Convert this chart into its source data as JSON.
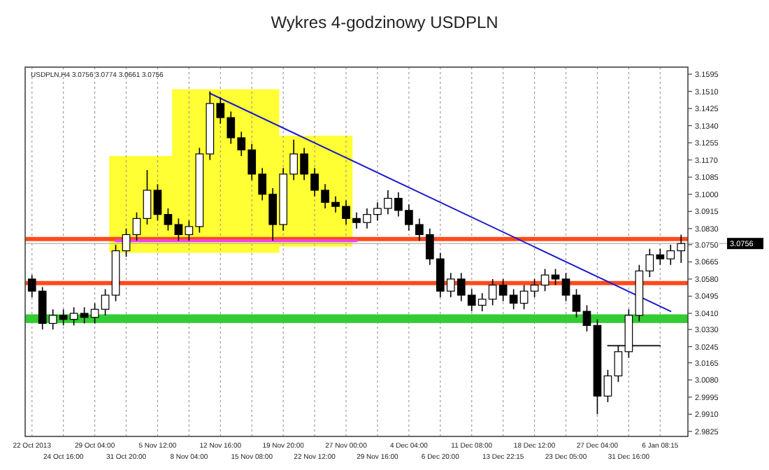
{
  "chart_data": {
    "type": "candlestick",
    "title": "Wykres 4-godzinowy USDPLN",
    "annotations": [
      "USDPLN,H4 3.0756 3.0774 3.0661 3.0756"
    ],
    "categories": [
      "22 Oct 2013",
      null,
      null,
      "24 Oct 16:00",
      null,
      null,
      "29 Oct 04:00",
      null,
      null,
      "31 Oct 20:00",
      null,
      null,
      "5 Nov 12:00",
      null,
      null,
      "8 Nov 04:00",
      null,
      null,
      "12 Nov 16:00",
      null,
      null,
      "15 Nov 08:00",
      null,
      null,
      "19 Nov 20:00",
      null,
      null,
      "22 Nov 12:00",
      null,
      null,
      "27 Nov 00:00",
      null,
      null,
      "29 Nov 16:00",
      null,
      null,
      "4 Dec 04:00",
      null,
      null,
      "6 Dec 20:00",
      null,
      null,
      "11 Dec 08:00",
      null,
      null,
      "13 Dec 22:15",
      null,
      null,
      "18 Dec 12:00",
      null,
      null,
      "23 Dec 05:00",
      null,
      null,
      "27 Dec 04:00",
      null,
      null,
      "31 Dec 16:00",
      null,
      null,
      "6 Jan 08:15",
      null,
      null
    ],
    "ohlc": [
      [
        3.058,
        3.06,
        3.049,
        3.052
      ],
      [
        3.052,
        3.054,
        3.033,
        3.036
      ],
      [
        3.036,
        3.043,
        3.033,
        3.04
      ],
      [
        3.04,
        3.043,
        3.035,
        3.038
      ],
      [
        3.038,
        3.044,
        3.035,
        3.041
      ],
      [
        3.041,
        3.044,
        3.036,
        3.039
      ],
      [
        3.039,
        3.046,
        3.036,
        3.043
      ],
      [
        3.043,
        3.053,
        3.04,
        3.05
      ],
      [
        3.05,
        3.075,
        3.047,
        3.072
      ],
      [
        3.072,
        3.083,
        3.069,
        3.08
      ],
      [
        3.08,
        3.091,
        3.077,
        3.088
      ],
      [
        3.088,
        3.112,
        3.085,
        3.102
      ],
      [
        3.102,
        3.105,
        3.087,
        3.09
      ],
      [
        3.09,
        3.093,
        3.082,
        3.085
      ],
      [
        3.085,
        3.088,
        3.077,
        3.08
      ],
      [
        3.08,
        3.087,
        3.077,
        3.084
      ],
      [
        3.084,
        3.123,
        3.081,
        3.12
      ],
      [
        3.12,
        3.151,
        3.117,
        3.145
      ],
      [
        3.145,
        3.148,
        3.135,
        3.138
      ],
      [
        3.138,
        3.141,
        3.125,
        3.128
      ],
      [
        3.128,
        3.131,
        3.119,
        3.122
      ],
      [
        3.122,
        3.125,
        3.107,
        3.11
      ],
      [
        3.11,
        3.113,
        3.097,
        3.1
      ],
      [
        3.1,
        3.103,
        3.077,
        3.085
      ],
      [
        3.085,
        3.113,
        3.082,
        3.11
      ],
      [
        3.11,
        3.127,
        3.107,
        3.12
      ],
      [
        3.12,
        3.123,
        3.107,
        3.11
      ],
      [
        3.11,
        3.113,
        3.099,
        3.102
      ],
      [
        3.102,
        3.105,
        3.093,
        3.096
      ],
      [
        3.096,
        3.099,
        3.091,
        3.094
      ],
      [
        3.094,
        3.097,
        3.085,
        3.088
      ],
      [
        3.088,
        3.091,
        3.083,
        3.086
      ],
      [
        3.086,
        3.093,
        3.083,
        3.09
      ],
      [
        3.09,
        3.096,
        3.087,
        3.093
      ],
      [
        3.093,
        3.102,
        3.09,
        3.098
      ],
      [
        3.098,
        3.101,
        3.089,
        3.092
      ],
      [
        3.092,
        3.095,
        3.082,
        3.085
      ],
      [
        3.085,
        3.088,
        3.077,
        3.08
      ],
      [
        3.08,
        3.083,
        3.065,
        3.068
      ],
      [
        3.068,
        3.071,
        3.049,
        3.052
      ],
      [
        3.052,
        3.061,
        3.049,
        3.058
      ],
      [
        3.058,
        3.061,
        3.047,
        3.05
      ],
      [
        3.05,
        3.053,
        3.042,
        3.045
      ],
      [
        3.045,
        3.051,
        3.042,
        3.048
      ],
      [
        3.048,
        3.058,
        3.045,
        3.055
      ],
      [
        3.055,
        3.058,
        3.047,
        3.05
      ],
      [
        3.05,
        3.053,
        3.043,
        3.046
      ],
      [
        3.046,
        3.055,
        3.043,
        3.052
      ],
      [
        3.052,
        3.058,
        3.049,
        3.055
      ],
      [
        3.055,
        3.063,
        3.052,
        3.06
      ],
      [
        3.06,
        3.063,
        3.055,
        3.058
      ],
      [
        3.058,
        3.061,
        3.047,
        3.05
      ],
      [
        3.05,
        3.053,
        3.039,
        3.042
      ],
      [
        3.042,
        3.045,
        3.032,
        3.035
      ],
      [
        3.035,
        3.038,
        2.991,
        3.0
      ],
      [
        3.0,
        3.013,
        2.997,
        3.01
      ],
      [
        3.01,
        3.025,
        3.007,
        3.022
      ],
      [
        3.022,
        3.043,
        3.019,
        3.04
      ],
      [
        3.04,
        3.065,
        3.037,
        3.062
      ],
      [
        3.062,
        3.073,
        3.059,
        3.07
      ],
      [
        3.07,
        3.073,
        3.065,
        3.068
      ],
      [
        3.068,
        3.075,
        3.065,
        3.072
      ],
      [
        3.072,
        3.08,
        3.066,
        3.0756
      ]
    ],
    "series": [
      {
        "type": "line",
        "color": "#1a1acc",
        "values": [
          null,
          null,
          null,
          null,
          null,
          null,
          null,
          null,
          null,
          null,
          null,
          null,
          null,
          null,
          null,
          null,
          null,
          3.15,
          null,
          null,
          null,
          null,
          null,
          null,
          null,
          null,
          null,
          null,
          null,
          null,
          null,
          null,
          null,
          null,
          null,
          null,
          null,
          null,
          null,
          null,
          null,
          null,
          null,
          null,
          null,
          null,
          null,
          null,
          null,
          null,
          null,
          null,
          null,
          null,
          null,
          null,
          null,
          null,
          null,
          null,
          null,
          3.042,
          null
        ]
      },
      {
        "type": "line",
        "color": "#ee44ee",
        "values": [
          null,
          null,
          null,
          null,
          null,
          null,
          null,
          null,
          3.077,
          null,
          null,
          null,
          null,
          null,
          null,
          null,
          null,
          null,
          null,
          null,
          null,
          null,
          null,
          null,
          null,
          null,
          null,
          null,
          null,
          null,
          null,
          3.077,
          null,
          null,
          null,
          null,
          null,
          null,
          null,
          null,
          null,
          null,
          null,
          null,
          null,
          null,
          null,
          null,
          null,
          null,
          null,
          null,
          null,
          null,
          null,
          null,
          null,
          null,
          null,
          null,
          null,
          null,
          null
        ]
      },
      {
        "type": "line",
        "color": "#222222",
        "values": [
          null,
          null,
          null,
          null,
          null,
          null,
          null,
          null,
          null,
          null,
          null,
          null,
          null,
          null,
          null,
          null,
          null,
          null,
          null,
          null,
          null,
          null,
          null,
          null,
          null,
          null,
          null,
          null,
          null,
          null,
          null,
          null,
          null,
          null,
          null,
          null,
          null,
          null,
          null,
          null,
          null,
          null,
          null,
          null,
          null,
          null,
          null,
          null,
          null,
          null,
          null,
          null,
          null,
          null,
          null,
          3.025,
          null,
          null,
          null,
          null,
          3.025,
          null,
          null
        ]
      }
    ],
    "ylim": [
      2.98,
      3.163
    ],
    "yticks": [
      3.1595,
      {
        "value": 3.151,
        "label": "3.1510"
      },
      3.1425,
      {
        "value": 3.134,
        "label": "3.1340"
      },
      3.1255,
      {
        "value": 3.117,
        "label": "3.1170"
      },
      3.1085,
      {
        "value": 3.1,
        "label": "3.1000"
      },
      3.0915,
      {
        "value": 3.083,
        "label": "3.0830"
      },
      {
        "value": 3.075,
        "label": "3.0750"
      },
      3.0665,
      {
        "value": 3.058,
        "label": "3.0580"
      },
      3.0495,
      {
        "value": 3.041,
        "label": "3.0410"
      },
      {
        "value": 3.033,
        "label": "3.0330"
      },
      3.0245,
      3.0165,
      {
        "value": 3.008,
        "label": "3.0080"
      },
      2.9995,
      {
        "value": 2.991,
        "label": "2.9910"
      },
      2.9825
    ],
    "ref_lines": [
      {
        "axis": "y",
        "value": 3.0778,
        "color": "#ff4a1c"
      },
      {
        "axis": "y",
        "value": 3.056,
        "color": "#ff4a1c"
      },
      {
        "axis": "y",
        "value": 3.0756,
        "color": "#b0b0b0",
        "label": "3.0756"
      }
    ],
    "bands": [
      {
        "axis": "y",
        "from": 3.0362,
        "to": 3.0405,
        "color": "#33cc33"
      }
    ],
    "grid": "x"
  }
}
